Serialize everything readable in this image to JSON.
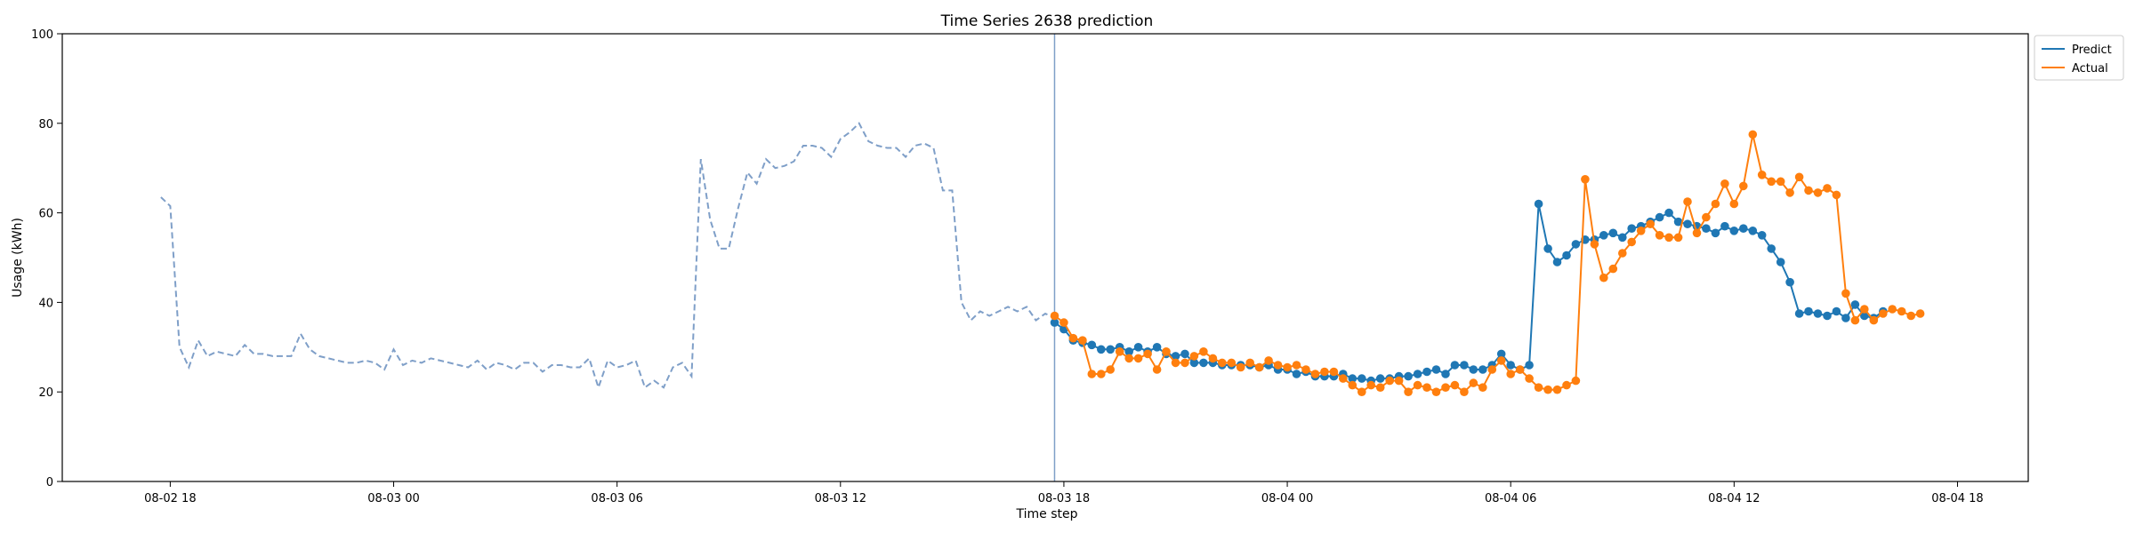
{
  "chart_data": {
    "type": "line",
    "title": "Time Series 2638 prediction",
    "xlabel": "Time step",
    "ylabel": "Usage (kWh)",
    "ylim": [
      0,
      100
    ],
    "yticks": [
      "0",
      "20",
      "40",
      "60",
      "80",
      "100"
    ],
    "xticks": [
      "08-02 18",
      "08-03 00",
      "08-03 06",
      "08-03 12",
      "08-03 18",
      "08-04 00",
      "08-04 06",
      "08-04 12",
      "08-04 18"
    ],
    "x_range_hours": [
      -2.9,
      49.9
    ],
    "x_unit": "hours since 08-02 18:00",
    "history": {
      "start_hour": -0.25,
      "step_hours": 0.25,
      "style": "dashed",
      "color": "#7f9fc8",
      "values": [
        63.5,
        61.5,
        30,
        25.5,
        31.5,
        28,
        29,
        28.5,
        28,
        30.5,
        28.5,
        28.5,
        28,
        28,
        28,
        33,
        29.5,
        28,
        27.5,
        27,
        26.5,
        26.5,
        27,
        26.5,
        25,
        29.5,
        26,
        27,
        26.5,
        27.5,
        27,
        26.5,
        26,
        25.5,
        27,
        25,
        26.5,
        26,
        25,
        26.5,
        26.5,
        24.5,
        26,
        26,
        25.5,
        25.5,
        27.5,
        21,
        27,
        25.5,
        26,
        27,
        21,
        22.5,
        21,
        25.5,
        26.5,
        23.5,
        72,
        58.5,
        52,
        52,
        61,
        69,
        66.5,
        72,
        70,
        70.5,
        71.5,
        75,
        75,
        74.5,
        72.5,
        76.5,
        78,
        80,
        76,
        75,
        74.5,
        74.5,
        72.5,
        75,
        75.5,
        74.5,
        65,
        65,
        40,
        36,
        38,
        37,
        38,
        39,
        38,
        39,
        36,
        37.5,
        36.5
      ]
    },
    "cutoff_hour": 23.75,
    "cutoff_color": "#7f9fc8",
    "forecast_start_hour": 23.75,
    "forecast_step_hours": 0.25,
    "series": [
      {
        "name": "Predict",
        "color": "#1f77b4",
        "values": [
          35.5,
          34,
          31.5,
          31,
          30.5,
          29.5,
          29.5,
          30,
          29,
          30,
          29,
          30,
          28.5,
          28,
          28.5,
          26.5,
          26.5,
          26.5,
          26,
          26,
          26,
          26,
          25.5,
          26,
          25,
          25,
          24,
          24.5,
          23.5,
          23.5,
          23.5,
          24,
          23,
          23,
          22.5,
          23,
          23,
          23.5,
          23.5,
          24,
          24.5,
          25,
          24,
          26,
          26,
          25,
          25,
          26,
          28.5,
          26,
          25,
          26,
          62,
          52,
          49,
          50.5,
          53,
          54,
          54,
          55,
          55.5,
          54.5,
          56.5,
          57,
          58,
          59,
          60,
          58,
          57.5,
          57,
          56.5,
          55.5,
          57,
          56,
          56.5,
          56,
          55,
          52,
          49,
          44.5,
          37.5,
          38,
          37.5,
          37,
          38,
          36.5,
          39.5,
          37,
          36.5,
          38
        ]
      },
      {
        "name": "Actual",
        "color": "#ff7f0e",
        "values": [
          37,
          35.5,
          32,
          31.5,
          24,
          24,
          25,
          29,
          27.5,
          27.5,
          28.5,
          25,
          29,
          26.5,
          26.5,
          28,
          29,
          27.5,
          26.5,
          26.5,
          25.5,
          26.5,
          25.5,
          27,
          26,
          25.5,
          26,
          25,
          24,
          24.5,
          24.5,
          23,
          21.5,
          20,
          21.5,
          21,
          22.5,
          22.5,
          20,
          21.5,
          21,
          20,
          21,
          21.5,
          20,
          22,
          21,
          25,
          27,
          24,
          25,
          23,
          21,
          20.5,
          20.5,
          21.5,
          22.5,
          67.5,
          53,
          45.5,
          47.5,
          51,
          53.5,
          56,
          57.5,
          55,
          54.5,
          54.5,
          62.5,
          55.5,
          59,
          62,
          66.5,
          62,
          66,
          77.5,
          68.5,
          67,
          67,
          64.5,
          68,
          65,
          64.5,
          65.5,
          64,
          42,
          36,
          38.5,
          36,
          37.5,
          38.5,
          38,
          37,
          37.5
        ]
      }
    ],
    "legend": {
      "position": "top-right",
      "entries": [
        "Predict",
        "Actual"
      ]
    },
    "grid": false
  }
}
